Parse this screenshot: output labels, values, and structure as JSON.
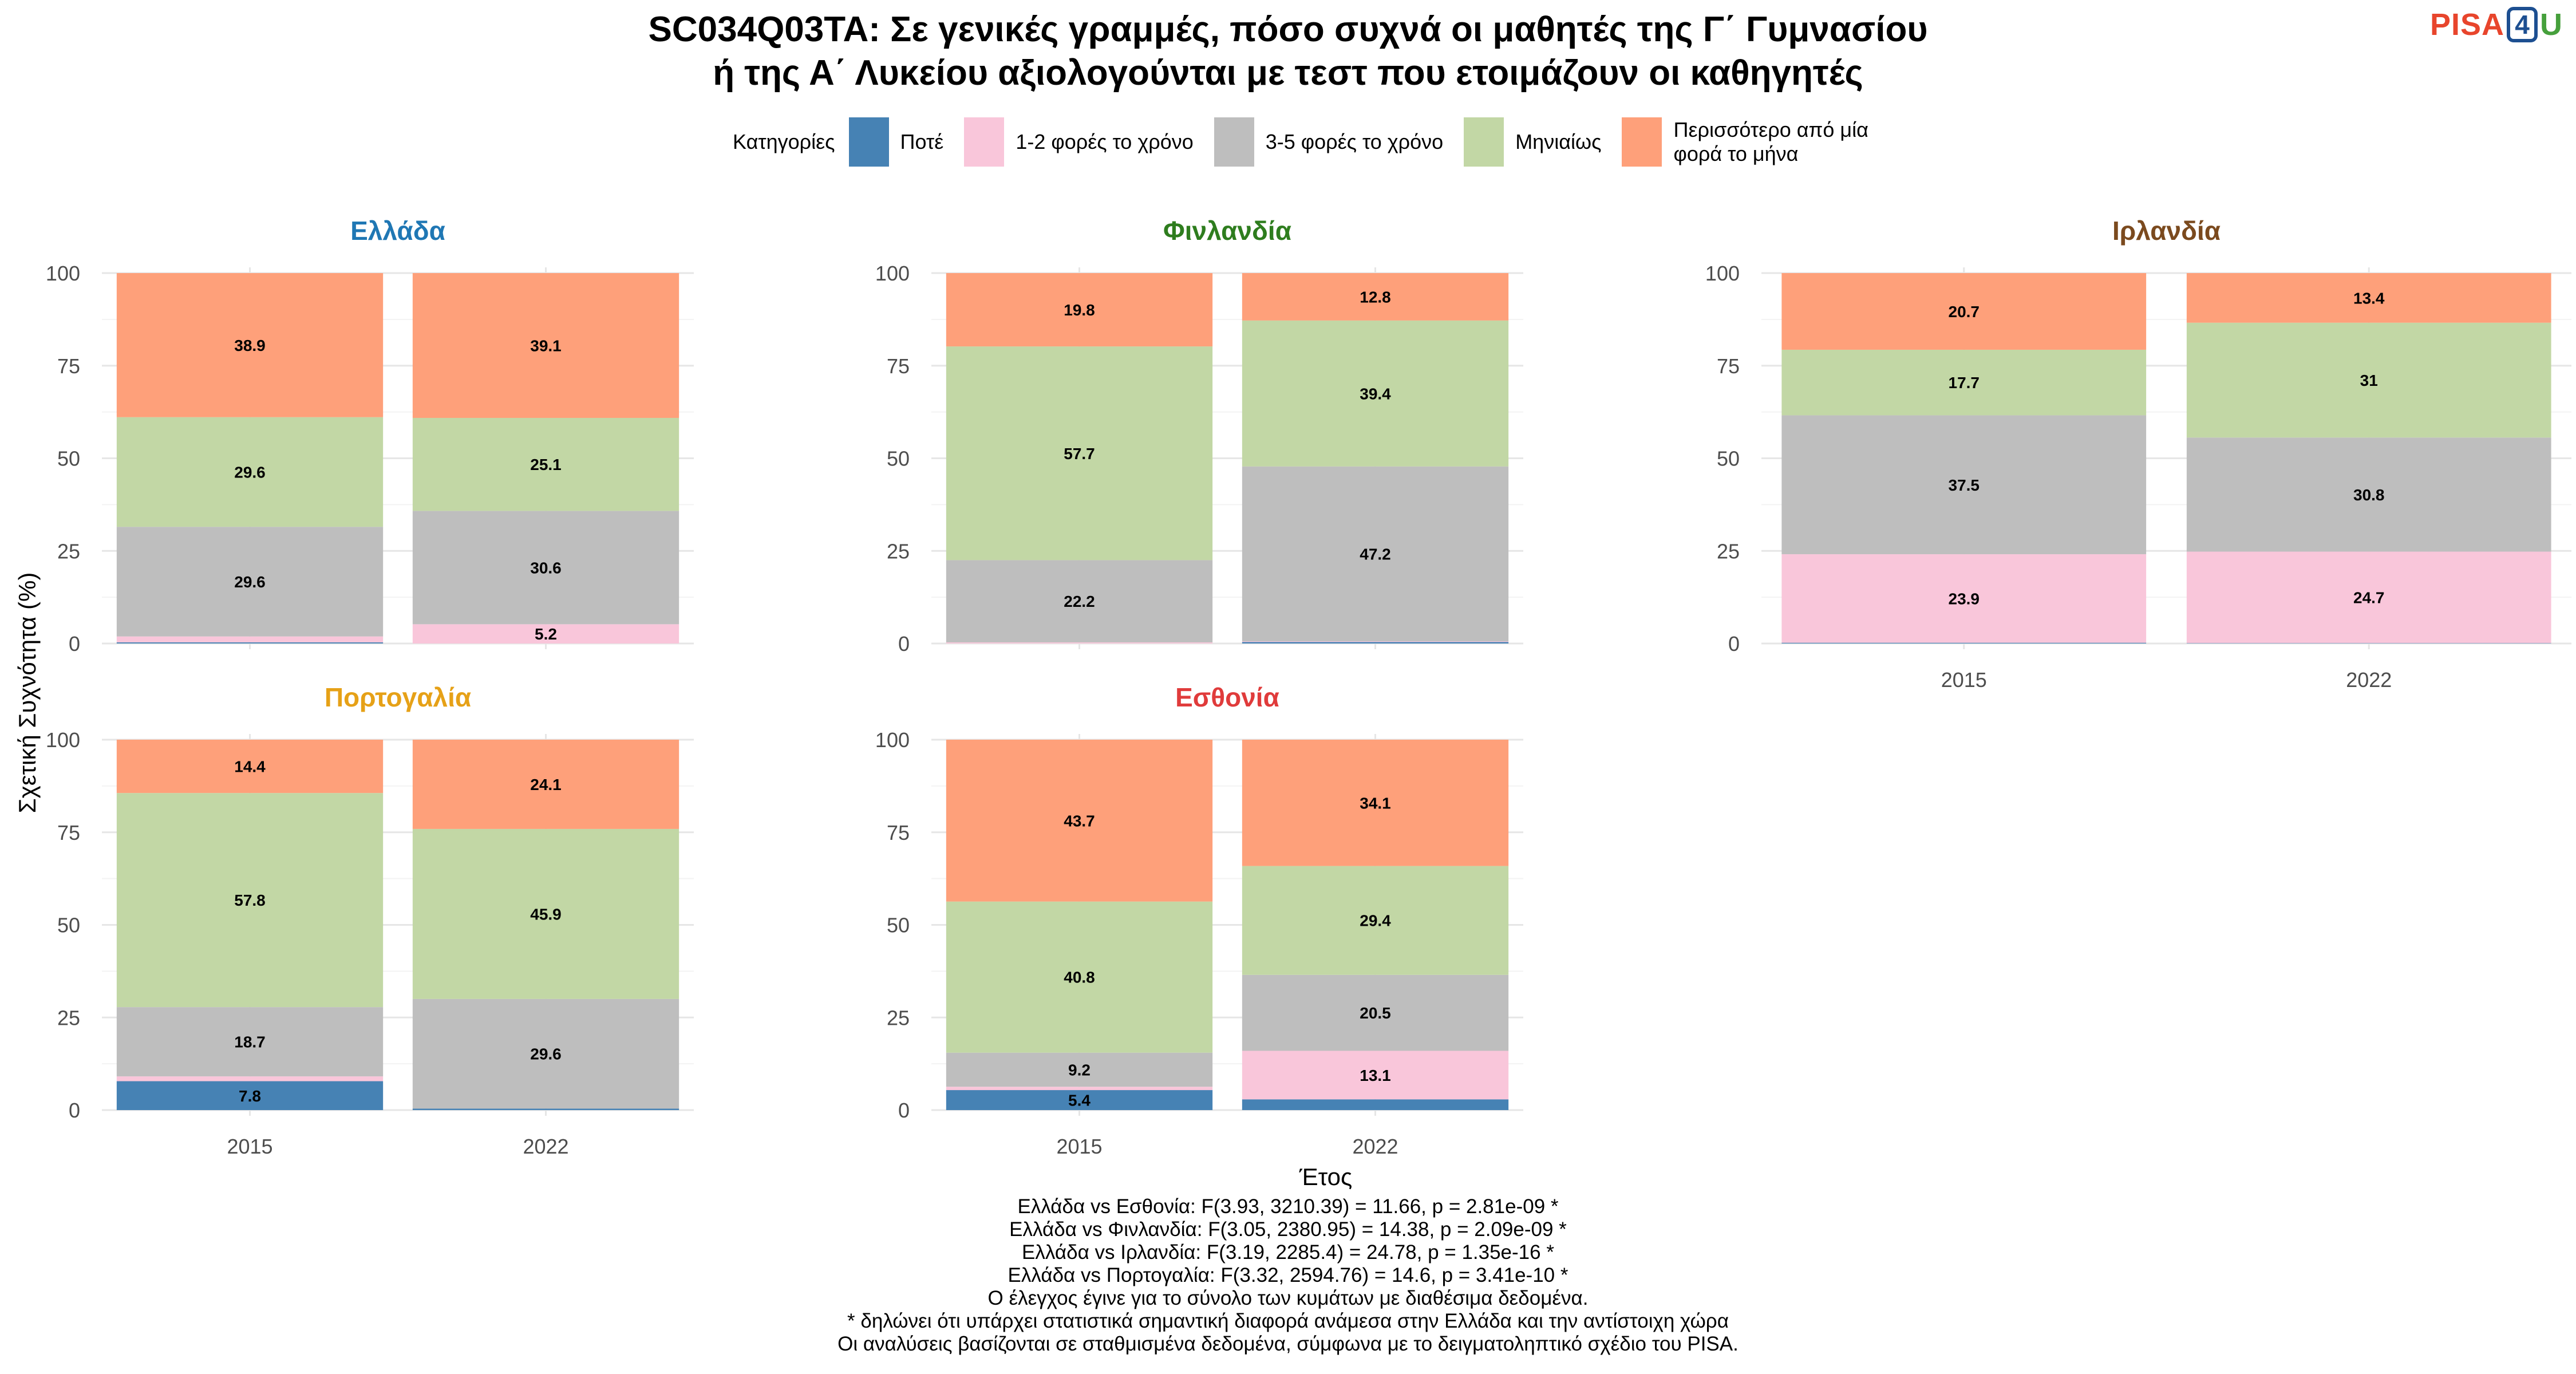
{
  "title_lines": [
    "SC034Q03TA: Σε γενικές γραμμές, πόσο συχνά οι μαθητές της Γ΄ Γυμνασίου",
    "ή της Α΄ Λυκείου αξιολογούνται με τεστ που ετοιμάζουν οι καθηγητές"
  ],
  "logo": {
    "text1": "PISA",
    "text2": "4",
    "text3": "U"
  },
  "legend": {
    "title": "Κατηγορίες",
    "items": [
      {
        "label": "Ποτέ",
        "color": "#4682b4"
      },
      {
        "label": "1-2 φορές το χρόνο",
        "color": "#f9c6da"
      },
      {
        "label": "3-5 φορές το χρόνο",
        "color": "#bebebe"
      },
      {
        "label": "Μηνιαίως",
        "color": "#c2d7a5"
      },
      {
        "label": "Περισσότερο από μία φορά το μήνα",
        "color": "#fea07a"
      }
    ]
  },
  "notes": [
    "Ελλάδα vs Εσθονία: F(3.93, 3210.39) = 11.66, p = 2.81e-09 *",
    "Ελλάδα vs Φινλανδία: F(3.05, 2380.95) = 14.38, p = 2.09e-09 *",
    "Ελλάδα vs Ιρλανδία: F(3.19, 2285.4) = 24.78, p = 1.35e-16 *",
    "Ελλάδα vs Πορτογαλία: F(3.32, 2594.76) = 14.6, p = 3.41e-10 *",
    "Ο έλεγχος έγινε για το σύνολο των κυμάτων με διαθέσιμα δεδομένα.",
    "* δηλώνει ότι υπάρχει στατιστικά σημαντική διαφορά ανάμεσα στην Ελλάδα και την αντίστοιχη χώρα",
    "Οι αναλύσεις βασίζονται σε σταθμισμένα δεδομένα, σύμφωνα με το δειγματοληπτικό σχέδιο του PISA."
  ],
  "chart_data": {
    "type": "bar",
    "stacked": true,
    "xlabel": "Έτος",
    "ylabel": "Σχετική Συχνότητα (%)",
    "ylim": [
      0,
      100
    ],
    "yticks": [
      0,
      25,
      50,
      75,
      100
    ],
    "categories": [
      "2015",
      "2022"
    ],
    "series_names": [
      "Ποτέ",
      "1-2 φορές το χρόνο",
      "3-5 φορές το χρόνο",
      "Μηνιαίως",
      "Περισσότερο από μία φορά το μήνα"
    ],
    "panels": [
      {
        "country": "Ελλάδα",
        "title_color": "#1f77b4",
        "bars": [
          {
            "year": "2015",
            "values": [
              0.3,
              1.6,
              29.6,
              29.6,
              38.9
            ],
            "labels": [
              "",
              "",
              "29.6",
              "29.6",
              "38.9"
            ]
          },
          {
            "year": "2022",
            "values": [
              0.0,
              5.2,
              30.6,
              25.1,
              39.1
            ],
            "labels": [
              "",
              "5.2",
              "30.6",
              "25.1",
              "39.1"
            ]
          }
        ]
      },
      {
        "country": "Φινλανδία",
        "title_color": "#2e7d1e",
        "bars": [
          {
            "year": "2015",
            "values": [
              0.0,
              0.3,
              22.2,
              57.7,
              19.8
            ],
            "labels": [
              "",
              "",
              "22.2",
              "57.7",
              "19.8"
            ]
          },
          {
            "year": "2022",
            "values": [
              0.4,
              0.2,
              47.2,
              39.4,
              12.8
            ],
            "labels": [
              "",
              "",
              "47.2",
              "39.4",
              "12.8"
            ]
          }
        ]
      },
      {
        "country": "Ιρλανδία",
        "title_color": "#7b4a1e",
        "bars": [
          {
            "year": "2015",
            "values": [
              0.2,
              23.9,
              37.5,
              17.7,
              20.7
            ],
            "labels": [
              "",
              "23.9",
              "37.5",
              "17.7",
              "20.7"
            ]
          },
          {
            "year": "2022",
            "values": [
              0.1,
              24.7,
              30.8,
              31.0,
              13.4
            ],
            "labels": [
              "",
              "24.7",
              "30.8",
              "31",
              "13.4"
            ]
          }
        ]
      },
      {
        "country": "Πορτογαλία",
        "title_color": "#e6a117",
        "bars": [
          {
            "year": "2015",
            "values": [
              7.8,
              1.3,
              18.7,
              57.8,
              14.4
            ],
            "labels": [
              "7.8",
              "",
              "18.7",
              "57.8",
              "14.4"
            ]
          },
          {
            "year": "2022",
            "values": [
              0.4,
              0.0,
              29.6,
              45.9,
              24.1
            ],
            "labels": [
              "",
              "",
              "29.6",
              "45.9",
              "24.1"
            ]
          }
        ]
      },
      {
        "country": "Εσθονία",
        "title_color": "#e03b3b",
        "bars": [
          {
            "year": "2015",
            "values": [
              5.4,
              0.9,
              9.2,
              40.8,
              43.7
            ],
            "labels": [
              "5.4",
              "",
              "9.2",
              "40.8",
              "43.7"
            ]
          },
          {
            "year": "2022",
            "values": [
              2.9,
              13.1,
              20.5,
              29.4,
              34.1
            ],
            "labels": [
              "",
              "13.1",
              "20.5",
              "29.4",
              "34.1"
            ]
          }
        ]
      }
    ]
  }
}
